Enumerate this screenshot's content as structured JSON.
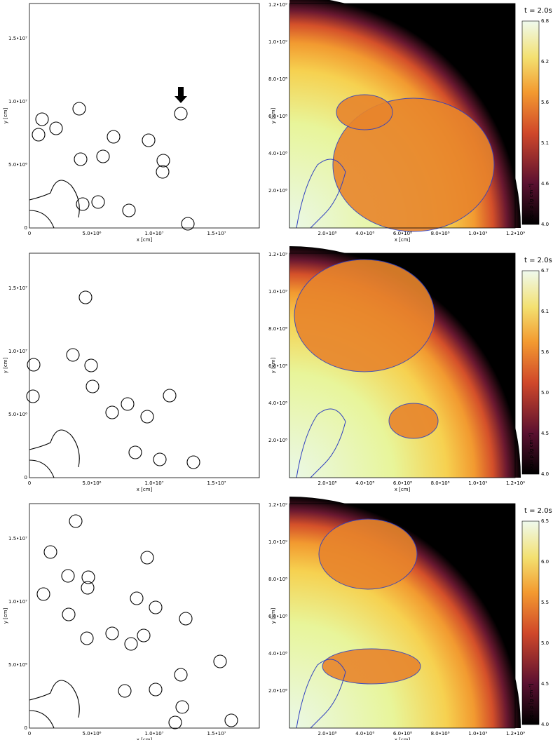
{
  "rows": [
    {
      "left": {
        "x_label": "x [cm]",
        "y_label": "y [cm]",
        "xticks": [
          "0",
          "5.0•10⁶",
          "1.0•10⁷",
          "1.5•10⁷"
        ],
        "yticks": [
          "0",
          "5.0•10⁶",
          "1.0•10⁷",
          "1.5•10⁷"
        ]
      },
      "right": {
        "time": "t = 2.0s",
        "x_label": "x [cm]",
        "y_label": "y [cm]",
        "xticks": [
          "2.0•10⁸",
          "4.0•10⁸",
          "6.0•10⁸",
          "8.0•10⁸",
          "1.0•10⁹",
          "1.2•10⁹"
        ],
        "yticks": [
          "2.0•10⁸",
          "4.0•10⁸",
          "6.0•10⁸",
          "8.0•10⁸",
          "1.0•10⁹",
          "1.2•10⁹"
        ],
        "colorbar_label": "log₁₀ ρ [g cm⁻³]",
        "colorbar_ticks": [
          "4.0",
          "4.6",
          "5.1",
          "5.6",
          "6.2",
          "6.8"
        ]
      }
    },
    {
      "left": {
        "x_label": "x [cm]",
        "y_label": "y [cm]",
        "xticks": [
          "0",
          "5.0•10⁶",
          "1.0•10⁷",
          "1.5•10⁷"
        ],
        "yticks": [
          "0",
          "5.0•10⁶",
          "1.0•10⁷",
          "1.5•10⁷"
        ]
      },
      "right": {
        "time": "t = 2.0s",
        "x_label": "x [cm]",
        "y_label": "y [cm]",
        "xticks": [
          "2.0•10⁸",
          "4.0•10⁸",
          "6.0•10⁸",
          "8.0•10⁸",
          "1.0•10⁹",
          "1.2•10⁹"
        ],
        "yticks": [
          "2.0•10⁸",
          "4.0•10⁸",
          "6.0•10⁸",
          "8.0•10⁸",
          "1.0•10⁹",
          "1.2•10⁹"
        ],
        "colorbar_label": "log₁₀ ρ [g cm⁻³]",
        "colorbar_ticks": [
          "4.0",
          "4.5",
          "5.0",
          "5.6",
          "6.1",
          "6.7"
        ]
      }
    },
    {
      "left": {
        "x_label": "x [cm]",
        "y_label": "y [cm]",
        "xticks": [
          "0",
          "5.0•10⁶",
          "1.0•10⁷",
          "1.5•10⁷"
        ],
        "yticks": [
          "0",
          "5.0•10⁶",
          "1.0•10⁷",
          "1.5•10⁷"
        ]
      },
      "right": {
        "time": "t = 2.0s",
        "x_label": "x [cm]",
        "y_label": "y [cm]",
        "xticks": [
          "2.0•10⁸",
          "4.0•10⁸",
          "6.0•10⁸",
          "8.0•10⁸",
          "1.0•10⁹",
          "1.2•10⁹"
        ],
        "yticks": [
          "2.0•10⁸",
          "4.0•10⁸",
          "6.0•10⁸",
          "8.0•10⁸",
          "1.0•10⁹",
          "1.2•10⁹"
        ],
        "colorbar_label": "log₁₀ ρ [g cm⁻³]",
        "colorbar_ticks": [
          "4.0",
          "4.5",
          "5.0",
          "5.5",
          "6.0",
          "6.5"
        ]
      }
    }
  ]
}
